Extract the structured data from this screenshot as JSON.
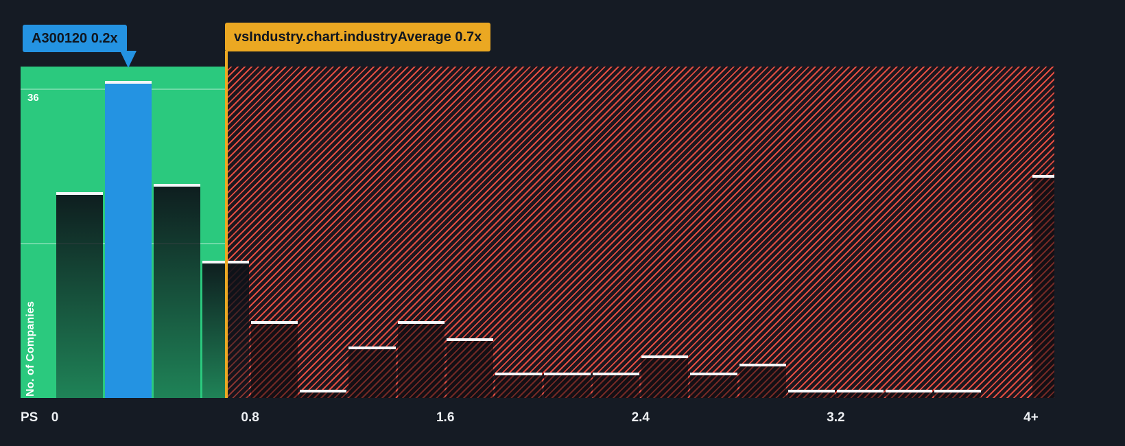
{
  "colors": {
    "background": "#151B24",
    "below_region": "#2BC97E",
    "hatch_stripe": "#E24E42",
    "company_blue": "#2493E2",
    "industry_amber": "#EBA822",
    "bar_cap": "#F4F6F8",
    "axis_text": "#EDF0F3",
    "tooltip_text": "#10161F"
  },
  "chart_data": {
    "type": "bar",
    "subtype": "histogram",
    "title": "",
    "bucket_width": 0.2,
    "x_axis": {
      "prefix_label": "PS",
      "range": [
        0,
        4.1
      ],
      "ticks": [
        {
          "label": "0",
          "value": 0
        },
        {
          "label": "0.8",
          "value": 0.8
        },
        {
          "label": "1.6",
          "value": 1.6
        },
        {
          "label": "2.4",
          "value": 2.4
        },
        {
          "label": "3.2",
          "value": 3.2
        },
        {
          "label": "4+",
          "value": 4
        }
      ]
    },
    "y_axis": {
      "label": "No. of Companies",
      "gridlines": [
        18,
        36
      ],
      "top_gridline_label": "36",
      "max": 38.6
    },
    "bars": [
      {
        "x": 0.0,
        "value": 24
      },
      {
        "x": 0.2,
        "value": 37,
        "highlight": true
      },
      {
        "x": 0.4,
        "value": 25
      },
      {
        "x": 0.6,
        "value": 16
      },
      {
        "x": 0.8,
        "value": 9
      },
      {
        "x": 1.0,
        "value": 1
      },
      {
        "x": 1.2,
        "value": 6
      },
      {
        "x": 1.4,
        "value": 9
      },
      {
        "x": 1.6,
        "value": 7
      },
      {
        "x": 1.8,
        "value": 3
      },
      {
        "x": 2.0,
        "value": 3
      },
      {
        "x": 2.2,
        "value": 3
      },
      {
        "x": 2.4,
        "value": 5
      },
      {
        "x": 2.6,
        "value": 3
      },
      {
        "x": 2.8,
        "value": 4
      },
      {
        "x": 3.0,
        "value": 1
      },
      {
        "x": 3.2,
        "value": 1
      },
      {
        "x": 3.4,
        "value": 1
      },
      {
        "x": 3.6,
        "value": 1
      },
      {
        "x": 4.0,
        "value": 26,
        "width": 0.1
      }
    ],
    "company_marker": {
      "label": "A300120 0.2x",
      "value": 0.2,
      "color": "#2493E2"
    },
    "industry_marker": {
      "label": "vsIndustry.chart.industryAverage 0.7x",
      "value": 0.7,
      "color": "#EBA822"
    },
    "regions": {
      "below_average_color": "#2BC97E",
      "above_average_hatch_color": "#E24E42"
    }
  }
}
